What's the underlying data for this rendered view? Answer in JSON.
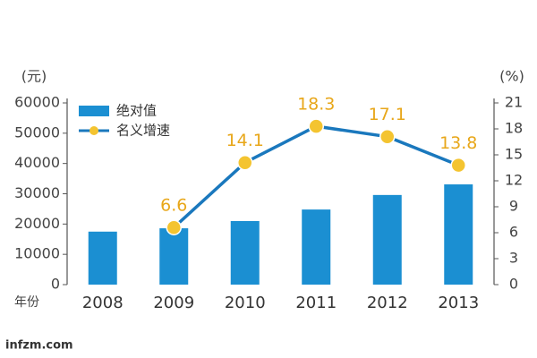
{
  "chart_data": {
    "type": "combo",
    "unit_left": "(元)",
    "unit_right": "(%)",
    "x_label": "年份",
    "watermark": "infzm.com",
    "categories": [
      "2008",
      "2009",
      "2010",
      "2011",
      "2012",
      "2013"
    ],
    "series": [
      {
        "name": "绝对值",
        "type": "bar",
        "color": "#1b8fd2",
        "values": [
          17500,
          18600,
          21000,
          24800,
          29600,
          33100
        ]
      },
      {
        "name": "名义增速",
        "type": "line",
        "axis": "y2",
        "color": "#1a78bd",
        "marker_color": "#f4c430",
        "label_color": "#e8a71a",
        "values": [
          null,
          6.6,
          14.1,
          18.3,
          17.1,
          13.8
        ]
      }
    ],
    "ylim": [
      0,
      60000
    ],
    "yticks": [
      0,
      10000,
      20000,
      30000,
      40000,
      50000,
      60000
    ],
    "y2lim": [
      0,
      21
    ],
    "y2ticks": [
      0,
      3,
      6,
      9,
      12,
      15,
      18,
      21
    ],
    "legend": "top-left"
  }
}
